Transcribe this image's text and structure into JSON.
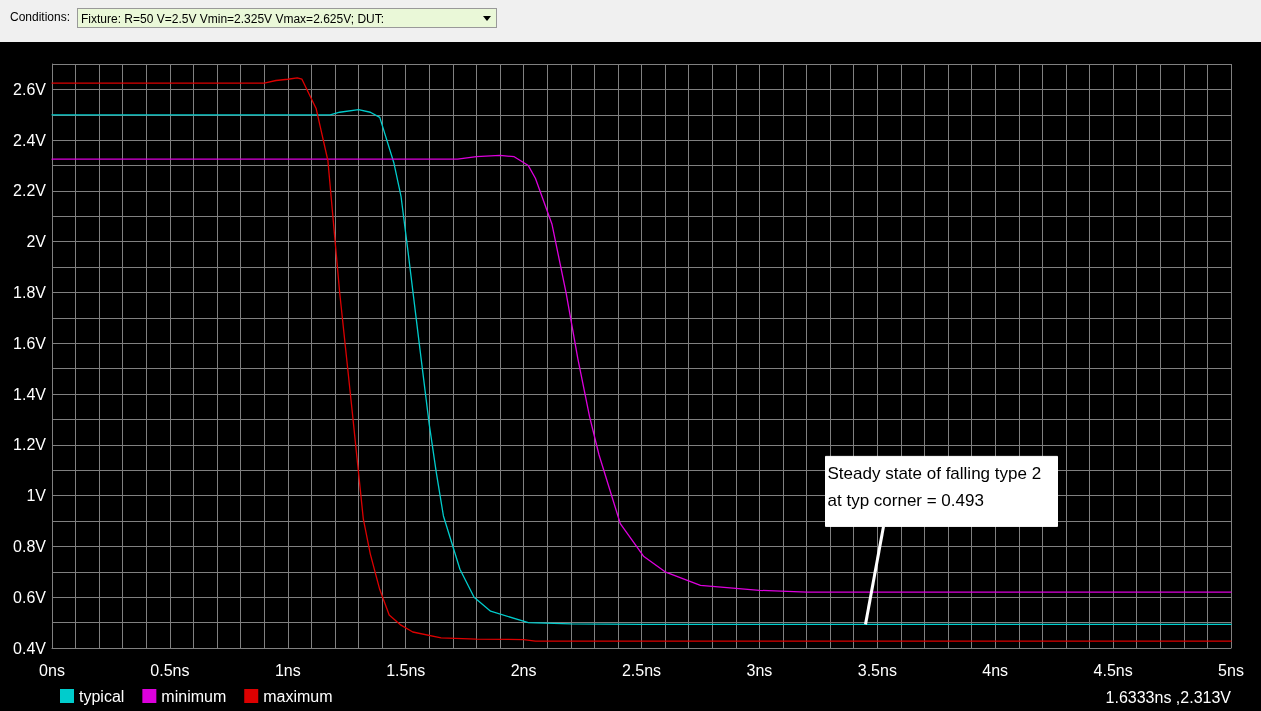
{
  "chart_data": {
    "type": "line",
    "annotations": [
      "Conditions:",
      "Fixture: R=50 V=2.5V Vmin=2.325V Vmax=2.625V;  DUT:",
      {
        "text": "Steady state of falling type 2 at typ corner = 0.493",
        "x": 3.45,
        "y": 0.493
      },
      "1.6333ns ,2.313V"
    ],
    "series": [
      {
        "name": "typical",
        "color": "#00cccc",
        "x": [
          0,
          1.18,
          1.22,
          1.3,
          1.35,
          1.39,
          1.45,
          1.48,
          1.51,
          1.56,
          1.6,
          1.63,
          1.66,
          1.73,
          1.79,
          1.86,
          2.02,
          2.2,
          2.5,
          5
        ],
        "values": [
          2.5,
          2.5,
          2.51,
          2.52,
          2.51,
          2.49,
          2.31,
          2.18,
          1.96,
          1.58,
          1.28,
          1.09,
          0.92,
          0.71,
          0.6,
          0.545,
          0.5,
          0.495,
          0.493,
          0.493
        ]
      },
      {
        "name": "minimum",
        "color": "#dd00dd",
        "x": [
          0,
          1.72,
          1.8,
          1.9,
          1.96,
          2.02,
          2.05,
          2.12,
          2.18,
          2.23,
          2.28,
          2.32,
          2.41,
          2.51,
          2.6,
          2.75,
          3.0,
          3.2,
          5
        ],
        "values": [
          2.325,
          2.325,
          2.335,
          2.34,
          2.335,
          2.3,
          2.25,
          2.07,
          1.8,
          1.54,
          1.31,
          1.16,
          0.89,
          0.76,
          0.7,
          0.647,
          0.627,
          0.62,
          0.62
        ]
      },
      {
        "name": "maximum",
        "color": "#dd0000",
        "x": [
          0,
          0.9,
          0.95,
          1.0,
          1.04,
          1.06,
          1.12,
          1.17,
          1.22,
          1.27,
          1.32,
          1.35,
          1.39,
          1.43,
          1.48,
          1.53,
          1.65,
          1.8,
          2.0,
          2.05,
          5
        ],
        "values": [
          2.625,
          2.625,
          2.635,
          2.64,
          2.645,
          2.64,
          2.525,
          2.32,
          1.8,
          1.36,
          0.91,
          0.77,
          0.63,
          0.53,
          0.49,
          0.463,
          0.44,
          0.435,
          0.433,
          0.427,
          0.427
        ]
      }
    ],
    "xlim": [
      0,
      5
    ],
    "xticks": [
      {
        "value": 0,
        "label": "0ns"
      },
      {
        "value": 0.1,
        "label": null
      },
      {
        "value": 0.2,
        "label": null
      },
      {
        "value": 0.3,
        "label": null
      },
      {
        "value": 0.4,
        "label": null
      },
      {
        "value": 0.5,
        "label": "0.5ns"
      },
      {
        "value": 0.6,
        "label": null
      },
      {
        "value": 0.7,
        "label": null
      },
      {
        "value": 0.8,
        "label": null
      },
      {
        "value": 0.9,
        "label": null
      },
      {
        "value": 1,
        "label": "1ns"
      },
      {
        "value": 1.1,
        "label": null
      },
      {
        "value": 1.2,
        "label": null
      },
      {
        "value": 1.3,
        "label": null
      },
      {
        "value": 1.4,
        "label": null
      },
      {
        "value": 1.5,
        "label": "1.5ns"
      },
      {
        "value": 1.6,
        "label": null
      },
      {
        "value": 1.7,
        "label": null
      },
      {
        "value": 1.8,
        "label": null
      },
      {
        "value": 1.9,
        "label": null
      },
      {
        "value": 2,
        "label": "2ns"
      },
      {
        "value": 2.1,
        "label": null
      },
      {
        "value": 2.2,
        "label": null
      },
      {
        "value": 2.3,
        "label": null
      },
      {
        "value": 2.4,
        "label": null
      },
      {
        "value": 2.5,
        "label": "2.5ns"
      },
      {
        "value": 2.6,
        "label": null
      },
      {
        "value": 2.7,
        "label": null
      },
      {
        "value": 2.8,
        "label": null
      },
      {
        "value": 2.9,
        "label": null
      },
      {
        "value": 3,
        "label": "3ns"
      },
      {
        "value": 3.1,
        "label": null
      },
      {
        "value": 3.2,
        "label": null
      },
      {
        "value": 3.3,
        "label": null
      },
      {
        "value": 3.4,
        "label": null
      },
      {
        "value": 3.5,
        "label": "3.5ns"
      },
      {
        "value": 3.6,
        "label": null
      },
      {
        "value": 3.7,
        "label": null
      },
      {
        "value": 3.8,
        "label": null
      },
      {
        "value": 3.9,
        "label": null
      },
      {
        "value": 4,
        "label": "4ns"
      },
      {
        "value": 4.1,
        "label": null
      },
      {
        "value": 4.2,
        "label": null
      },
      {
        "value": 4.3,
        "label": null
      },
      {
        "value": 4.4,
        "label": null
      },
      {
        "value": 4.5,
        "label": "4.5ns"
      },
      {
        "value": 4.6,
        "label": null
      },
      {
        "value": 4.7,
        "label": null
      },
      {
        "value": 4.8,
        "label": null
      },
      {
        "value": 4.9,
        "label": null
      },
      {
        "value": 5,
        "label": "5ns"
      }
    ],
    "ylim": [
      0.4,
      2.7
    ],
    "yticks": [
      {
        "value": 0.4,
        "label": "0.4V"
      },
      {
        "value": 0.5,
        "label": null
      },
      {
        "value": 0.6,
        "label": "0.6V"
      },
      {
        "value": 0.7,
        "label": null
      },
      {
        "value": 0.8,
        "label": "0.8V"
      },
      {
        "value": 0.9,
        "label": null
      },
      {
        "value": 1,
        "label": "1V"
      },
      {
        "value": 1.1,
        "label": null
      },
      {
        "value": 1.2,
        "label": "1.2V"
      },
      {
        "value": 1.3,
        "label": null
      },
      {
        "value": 1.4,
        "label": "1.4V"
      },
      {
        "value": 1.5,
        "label": null
      },
      {
        "value": 1.6,
        "label": "1.6V"
      },
      {
        "value": 1.7,
        "label": null
      },
      {
        "value": 1.8,
        "label": "1.8V"
      },
      {
        "value": 1.9,
        "label": null
      },
      {
        "value": 2,
        "label": "2V"
      },
      {
        "value": 2.1,
        "label": null
      },
      {
        "value": 2.2,
        "label": "2.2V"
      },
      {
        "value": 2.3,
        "label": null
      },
      {
        "value": 2.4,
        "label": "2.4V"
      },
      {
        "value": 2.5,
        "label": null
      },
      {
        "value": 2.6,
        "label": "2.6V"
      },
      {
        "value": 2.7,
        "label": null
      }
    ],
    "grid": true,
    "legend": "bottom left",
    "marker": "none",
    "line_style": "solid"
  }
}
